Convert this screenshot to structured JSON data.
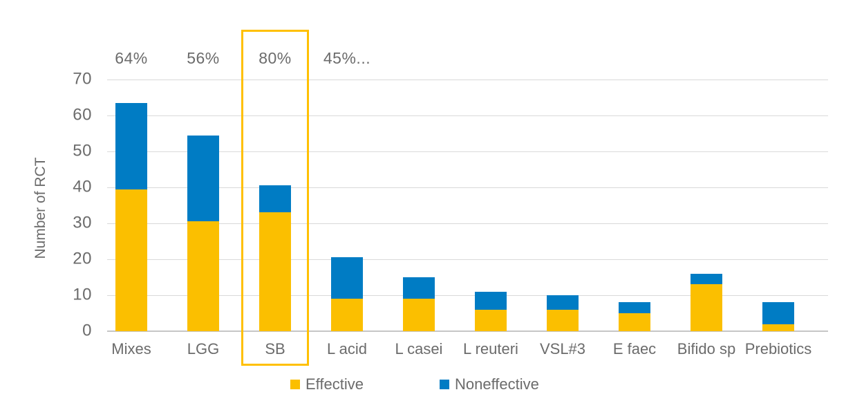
{
  "chart_data": {
    "type": "bar",
    "stacked": true,
    "title": "",
    "xlabel": "",
    "ylabel": "Number of RCT",
    "ylim": [
      0,
      70
    ],
    "yticks": [
      0,
      10,
      20,
      30,
      40,
      50,
      60,
      70
    ],
    "grid": true,
    "legend_position": "bottom",
    "categories": [
      "Mixes",
      "LGG",
      "SB",
      "L acid",
      "L casei",
      "L reuteri",
      "VSL#3",
      "E faec",
      "Bifido sp",
      "Prebiotics"
    ],
    "series": [
      {
        "name": "Effective",
        "color": "#FBBF00",
        "values": [
          39.5,
          30.5,
          33,
          9,
          9,
          6,
          6,
          5,
          13,
          2
        ]
      },
      {
        "name": "Noneffective",
        "color": "#007CC4",
        "values": [
          24,
          24,
          7.5,
          11.5,
          6,
          5,
          4,
          3,
          3,
          6
        ]
      }
    ],
    "percent_labels": [
      {
        "category": "Mixes",
        "label": "64%"
      },
      {
        "category": "LGG",
        "label": "56%"
      },
      {
        "category": "SB",
        "label": "80%"
      },
      {
        "category": "L acid",
        "label": "45%..."
      }
    ],
    "highlight": {
      "category": "SB",
      "border_color": "#FFC000"
    }
  }
}
